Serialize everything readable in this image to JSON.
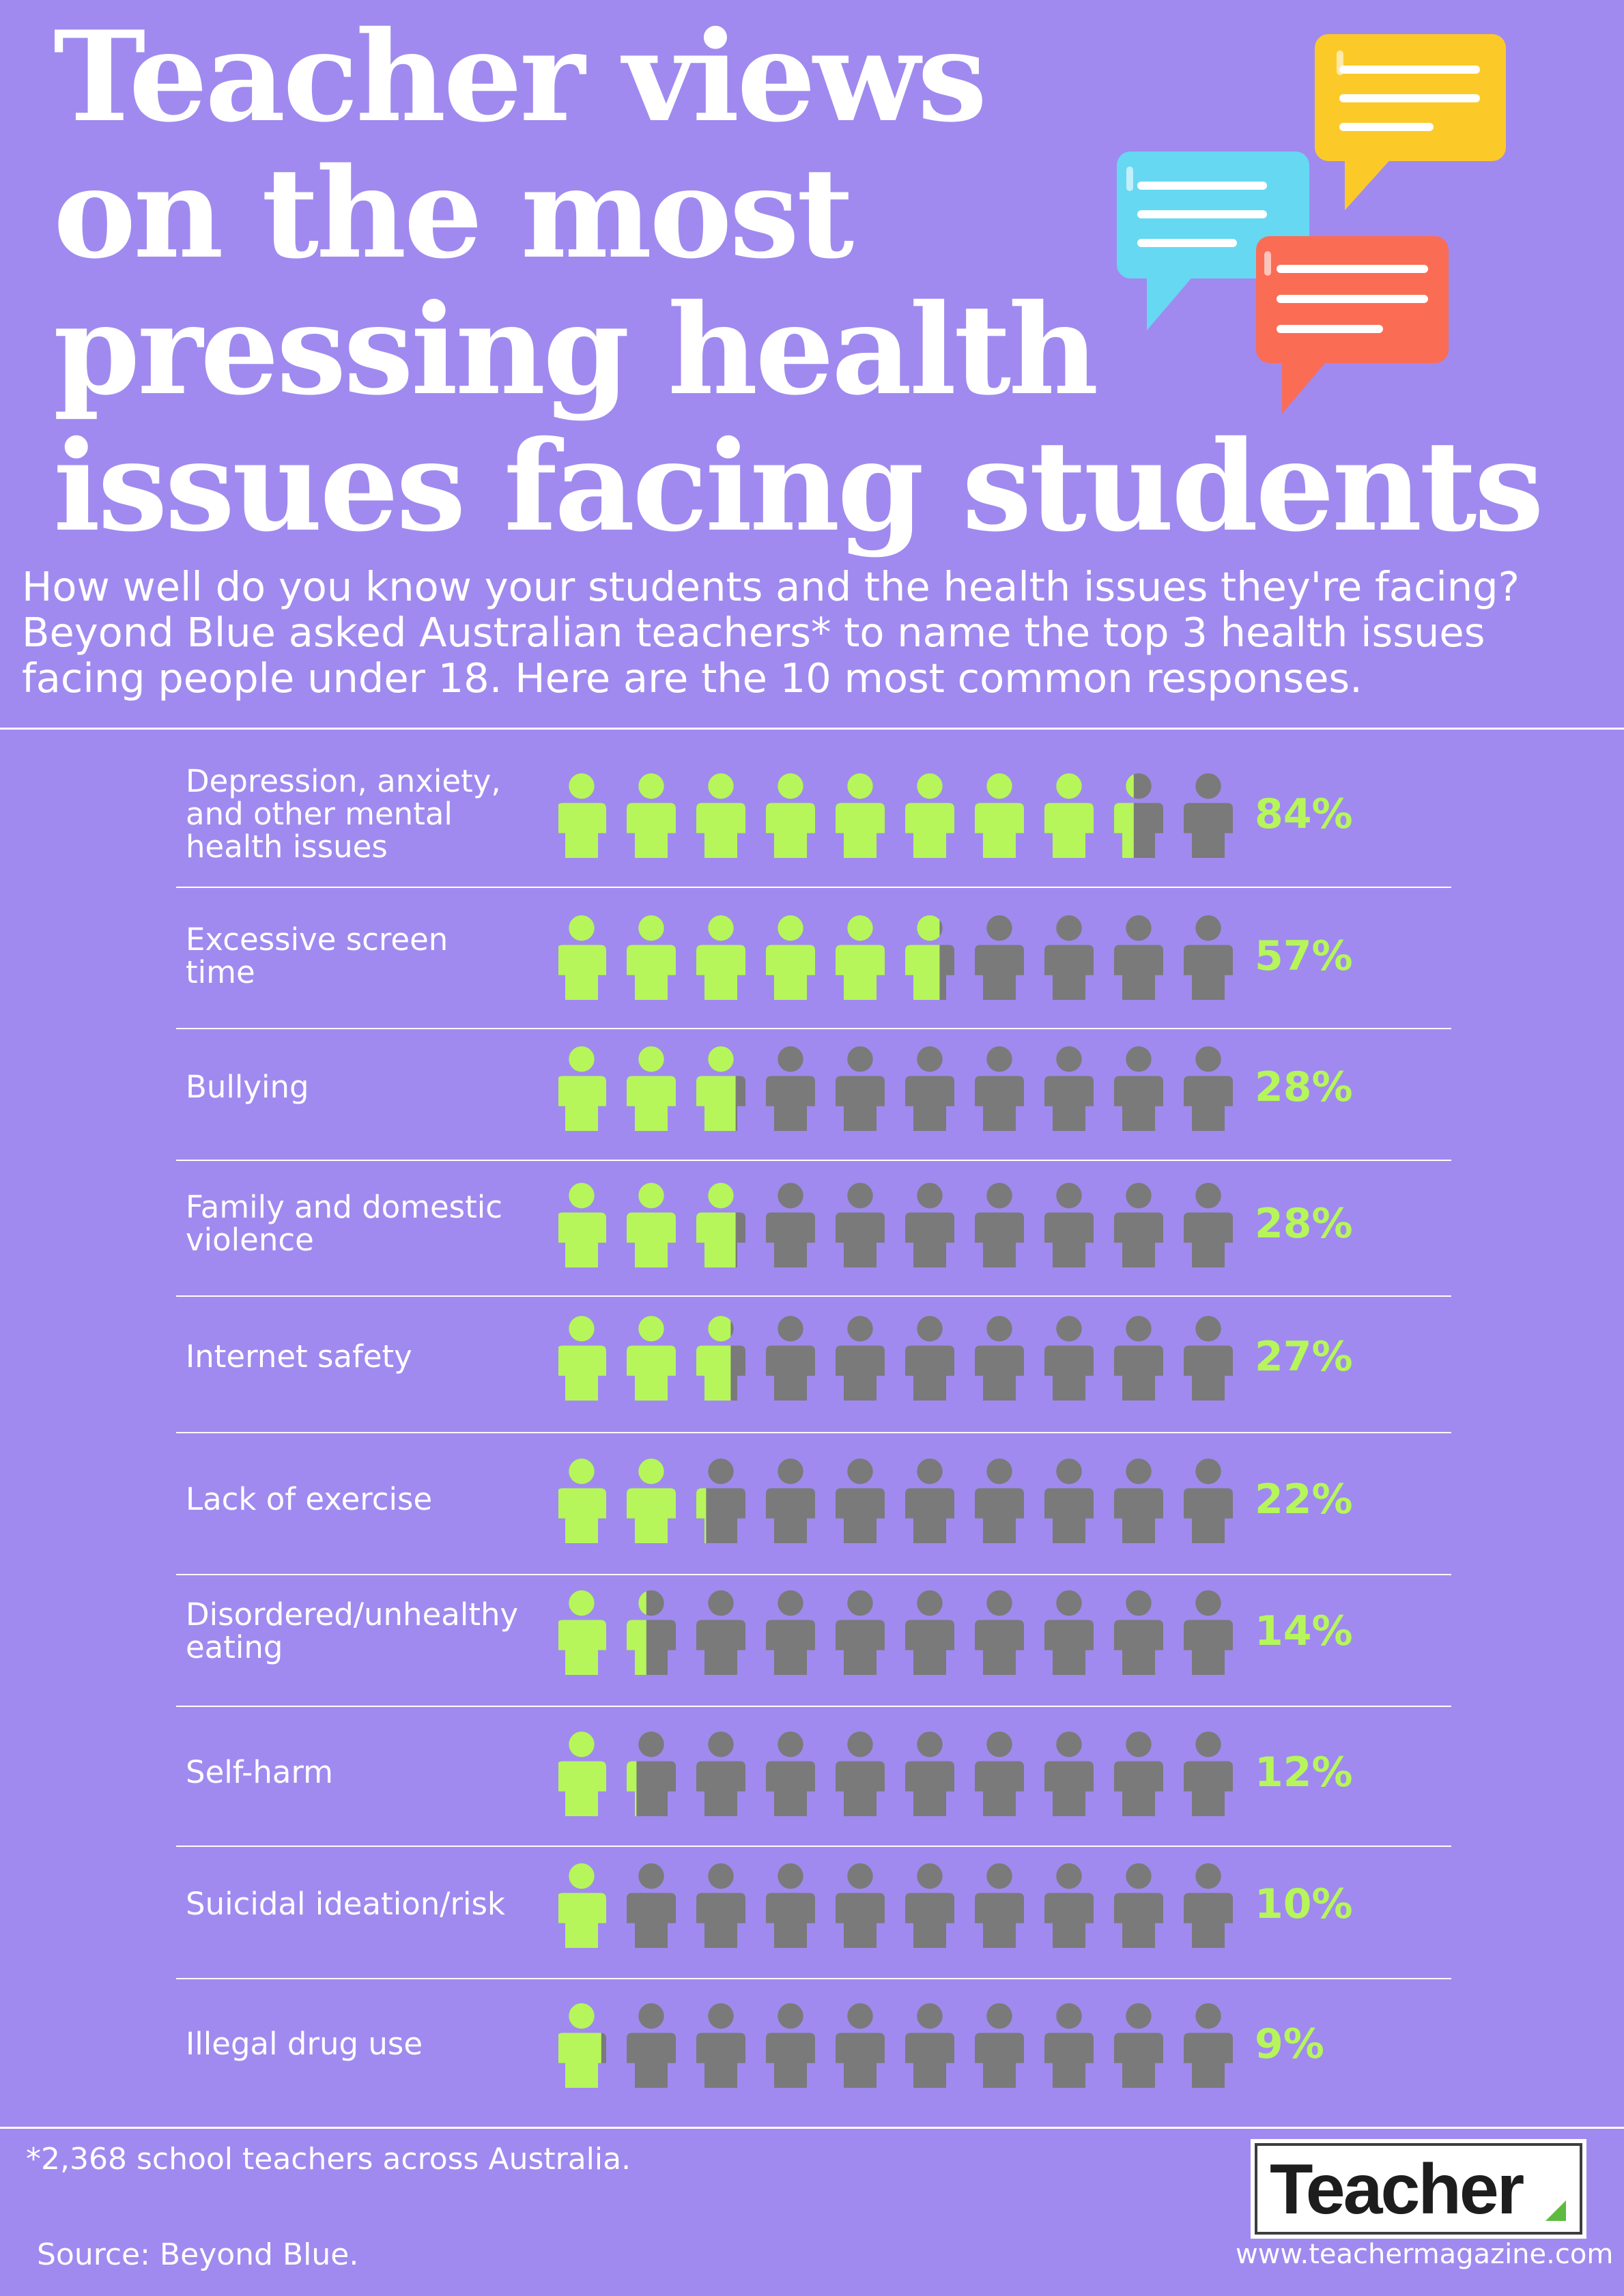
{
  "title_lines": [
    "Teacher views",
    "on the most",
    "pressing health",
    "issues facing students"
  ],
  "intro_lines": [
    "How well do you know your students and the health issues they're facing?",
    "Beyond Blue asked Australian teachers* to name the top 3 health issues",
    "facing people under 18. Here are the 10 most common responses."
  ],
  "colors": {
    "background": "#a08aef",
    "filled_icon": "#b6f65a",
    "empty_icon": "#7a7a7a",
    "percent_text": "#b6f65a",
    "bubble_yellow": "#fcca28",
    "bubble_blue": "#66d8f2",
    "bubble_red": "#fb6c55"
  },
  "icon_names": [
    "speech-bubbles-icon",
    "person-icon",
    "teacher-logo-mark-icon"
  ],
  "chart_data": {
    "type": "pictogram",
    "icons_per_row": 10,
    "unit": "%",
    "categories": [
      "Depression, anxiety, and other mental health issues",
      "Excessive screen time",
      "Bullying",
      "Family and domestic violence",
      "Internet safety",
      "Lack of exercise",
      "Disordered/unhealthy eating",
      "Self-harm",
      "Suicidal ideation/risk",
      "Illegal drug use"
    ],
    "label_lines": [
      [
        "Depression, anxiety,",
        "and other mental",
        "health issues"
      ],
      [
        "Excessive screen",
        "time"
      ],
      [
        "Bullying"
      ],
      [
        "Family and domestic",
        "violence"
      ],
      [
        "Internet safety"
      ],
      [
        "Lack of exercise"
      ],
      [
        "Disordered/unhealthy",
        "eating"
      ],
      [
        "Self-harm"
      ],
      [
        "Suicidal ideation/risk"
      ],
      [
        "Illegal drug use"
      ]
    ],
    "values": [
      84,
      57,
      28,
      28,
      27,
      22,
      14,
      12,
      10,
      9
    ],
    "value_labels": [
      "84%",
      "57%",
      "28%",
      "28%",
      "27%",
      "22%",
      "14%",
      "12%",
      "10%",
      "9%"
    ]
  },
  "footnote": "*2,368 school teachers across Australia.",
  "source": "Source: Beyond Blue.",
  "logo_text": "Teacher",
  "website": "www.teachermagazine.com"
}
